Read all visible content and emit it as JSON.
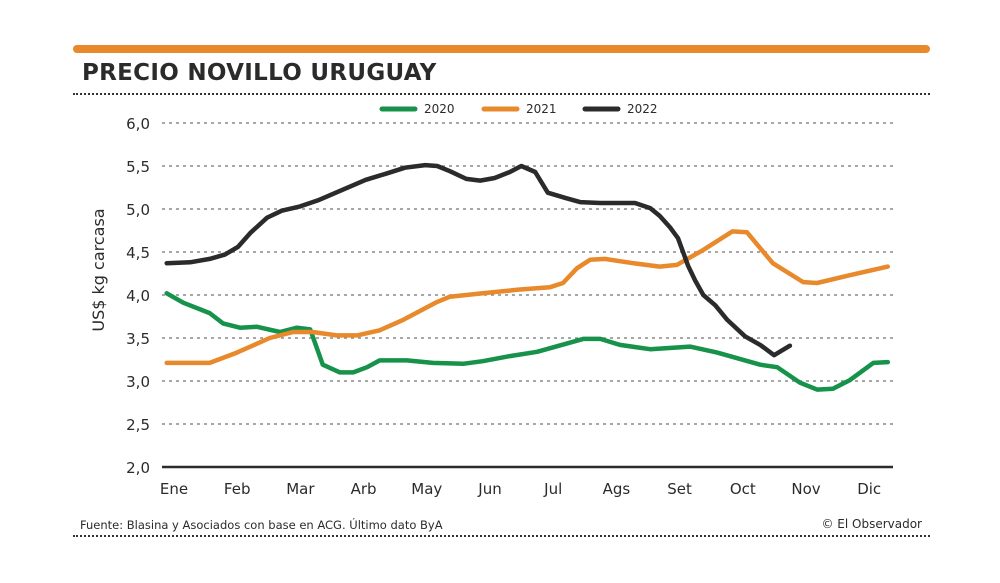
{
  "header": {
    "title": "PRECIO NOVILLO URUGUAY"
  },
  "footer": {
    "source": "Fuente: Blasina y Asociados con base en  ACG. Último dato ByA",
    "credit": "© El Observador"
  },
  "chart_data": {
    "type": "line",
    "title": "PRECIO NOVILLO URUGUAY",
    "xlabel": "",
    "ylabel": "US$ kg carcasa",
    "categories": [
      "Ene",
      "Feb",
      "Mar",
      "Arb",
      "May",
      "Jun",
      "Jul",
      "Ags",
      "Set",
      "Oct",
      "Nov",
      "Dic"
    ],
    "ylim": [
      2.0,
      6.0
    ],
    "yticks": [
      "6,0",
      "5,5",
      "5,0",
      "4,5",
      "4,0",
      "3,5",
      "3,0",
      "2,5",
      "2,0"
    ],
    "yticks_values": [
      6.0,
      5.5,
      5.0,
      4.5,
      4.0,
      3.5,
      3.0,
      2.5,
      2.0
    ],
    "grid": true,
    "legend": "top-center",
    "x_note": "x in month index (Ene=0)",
    "series": [
      {
        "name": "2020",
        "color": "#17924B",
        "points": [
          [
            -0.21,
            4.02
          ],
          [
            0.05,
            3.91
          ],
          [
            0.47,
            3.79
          ],
          [
            0.68,
            3.67
          ],
          [
            0.95,
            3.62
          ],
          [
            1.22,
            3.63
          ],
          [
            1.58,
            3.57
          ],
          [
            1.85,
            3.62
          ],
          [
            2.06,
            3.6
          ],
          [
            2.26,
            3.19
          ],
          [
            2.53,
            3.1
          ],
          [
            2.74,
            3.1
          ],
          [
            2.96,
            3.16
          ],
          [
            3.16,
            3.24
          ],
          [
            3.59,
            3.24
          ],
          [
            4.0,
            3.21
          ],
          [
            4.48,
            3.2
          ],
          [
            4.79,
            3.23
          ],
          [
            5.22,
            3.29
          ],
          [
            5.65,
            3.34
          ],
          [
            5.85,
            3.38
          ],
          [
            6.38,
            3.49
          ],
          [
            6.65,
            3.49
          ],
          [
            6.96,
            3.42
          ],
          [
            7.44,
            3.37
          ],
          [
            8.07,
            3.4
          ],
          [
            8.5,
            3.33
          ],
          [
            9.18,
            3.19
          ],
          [
            9.45,
            3.16
          ],
          [
            9.81,
            2.98
          ],
          [
            10.08,
            2.9
          ],
          [
            10.33,
            2.91
          ],
          [
            10.6,
            3.01
          ],
          [
            10.97,
            3.21
          ],
          [
            11.2,
            3.22
          ]
        ]
      },
      {
        "name": "2021",
        "color": "#E8892B",
        "points": [
          [
            -0.21,
            3.21
          ],
          [
            0.47,
            3.21
          ],
          [
            0.9,
            3.33
          ],
          [
            1.42,
            3.5
          ],
          [
            1.79,
            3.57
          ],
          [
            2.1,
            3.57
          ],
          [
            2.48,
            3.53
          ],
          [
            2.8,
            3.53
          ],
          [
            3.16,
            3.59
          ],
          [
            3.53,
            3.71
          ],
          [
            4.07,
            3.92
          ],
          [
            4.27,
            3.98
          ],
          [
            4.79,
            4.02
          ],
          [
            5.33,
            4.06
          ],
          [
            5.85,
            4.09
          ],
          [
            6.06,
            4.14
          ],
          [
            6.28,
            4.31
          ],
          [
            6.49,
            4.41
          ],
          [
            6.72,
            4.42
          ],
          [
            7.17,
            4.37
          ],
          [
            7.59,
            4.33
          ],
          [
            7.86,
            4.35
          ],
          [
            8.27,
            4.52
          ],
          [
            8.74,
            4.74
          ],
          [
            8.97,
            4.73
          ],
          [
            9.38,
            4.37
          ],
          [
            9.86,
            4.15
          ],
          [
            10.08,
            4.14
          ],
          [
            10.6,
            4.23
          ],
          [
            11.2,
            4.33
          ]
        ]
      },
      {
        "name": "2022",
        "color": "#2B2B2B",
        "points": [
          [
            -0.21,
            4.37
          ],
          [
            0.16,
            4.38
          ],
          [
            0.47,
            4.42
          ],
          [
            0.71,
            4.47
          ],
          [
            0.92,
            4.56
          ],
          [
            1.11,
            4.72
          ],
          [
            1.38,
            4.9
          ],
          [
            1.61,
            4.98
          ],
          [
            1.9,
            5.03
          ],
          [
            2.18,
            5.1
          ],
          [
            2.53,
            5.21
          ],
          [
            2.94,
            5.34
          ],
          [
            3.26,
            5.41
          ],
          [
            3.56,
            5.48
          ],
          [
            3.88,
            5.51
          ],
          [
            4.07,
            5.5
          ],
          [
            4.27,
            5.44
          ],
          [
            4.53,
            5.35
          ],
          [
            4.75,
            5.33
          ],
          [
            4.98,
            5.36
          ],
          [
            5.22,
            5.43
          ],
          [
            5.4,
            5.5
          ],
          [
            5.62,
            5.43
          ],
          [
            5.82,
            5.19
          ],
          [
            6.09,
            5.13
          ],
          [
            6.33,
            5.08
          ],
          [
            6.65,
            5.07
          ],
          [
            7.2,
            5.07
          ],
          [
            7.44,
            5.01
          ],
          [
            7.59,
            4.92
          ],
          [
            7.75,
            4.79
          ],
          [
            7.88,
            4.66
          ],
          [
            8.04,
            4.34
          ],
          [
            8.15,
            4.17
          ],
          [
            8.28,
            4.0
          ],
          [
            8.47,
            3.88
          ],
          [
            8.66,
            3.71
          ],
          [
            8.94,
            3.52
          ],
          [
            9.18,
            3.42
          ],
          [
            9.4,
            3.3
          ],
          [
            9.65,
            3.41
          ]
        ]
      }
    ]
  }
}
